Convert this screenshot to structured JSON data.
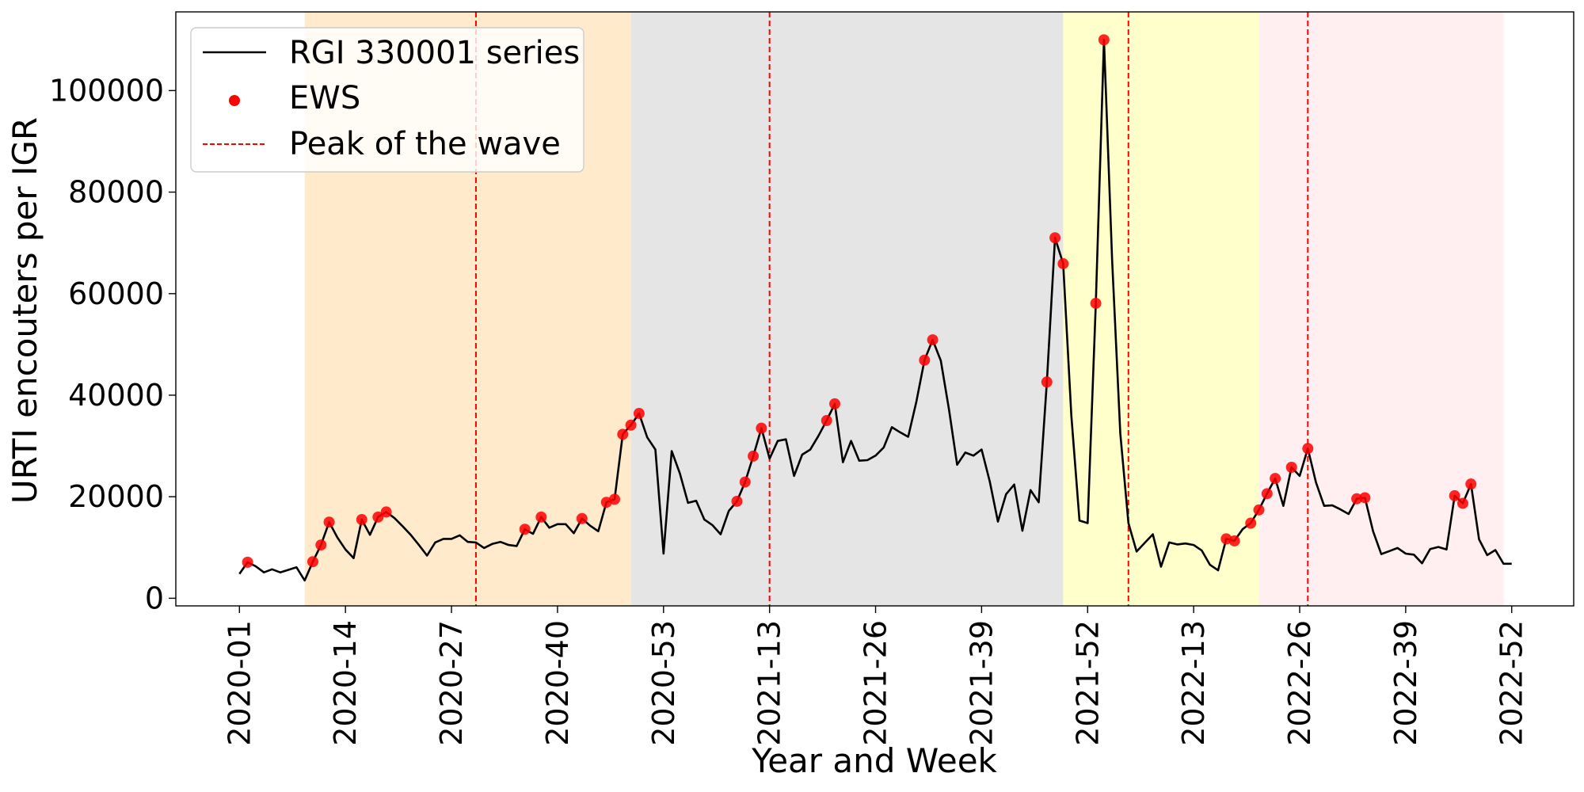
{
  "chart_data": {
    "type": "line",
    "xlabel": "Year and Week",
    "ylabel": "URTI encouters per IGR",
    "x_tick_labels": [
      "2020-01",
      "2020-14",
      "2020-27",
      "2020-40",
      "2020-53",
      "2021-13",
      "2021-26",
      "2021-39",
      "2021-52",
      "2022-13",
      "2022-26",
      "2022-39",
      "2022-52"
    ],
    "x_tick_index": [
      0,
      13,
      26,
      39,
      52,
      65,
      78,
      91,
      104,
      117,
      130,
      143,
      156
    ],
    "y_ticks": [
      0,
      20000,
      40000,
      60000,
      80000,
      100000
    ],
    "y_tick_labels": [
      "0",
      "20000",
      "40000",
      "60000",
      "80000",
      "100000"
    ],
    "ylim": [
      -1500,
      115500
    ],
    "xlim": [
      -7.8,
      163.6
    ],
    "legend": {
      "placement": "top-left",
      "entries": [
        {
          "key": "series",
          "label": "RGI 330001 series"
        },
        {
          "key": "ews",
          "label": "EWS"
        },
        {
          "key": "peak",
          "label": "Peak of the wave"
        }
      ]
    },
    "colors": {
      "series": "#000000",
      "ews": "#ff0000",
      "peak": "#ff0000",
      "wave1": "#ffebcc",
      "wave2": "#e5e5e5",
      "wave3": "#ffffcc",
      "wave4": "#ffeff1"
    },
    "wave_spans": [
      {
        "start": 8,
        "end": 48,
        "color_key": "wave1"
      },
      {
        "start": 48,
        "end": 101,
        "color_key": "wave2"
      },
      {
        "start": 101,
        "end": 125,
        "color_key": "wave3"
      },
      {
        "start": 125,
        "end": 155,
        "color_key": "wave4"
      }
    ],
    "peak_lines": [
      29,
      65,
      109,
      131
    ],
    "series": [
      {
        "key": "series",
        "values": [
          4800,
          7100,
          6300,
          5100,
          5700,
          5100,
          5600,
          6100,
          3500,
          7200,
          10500,
          15000,
          12000,
          9600,
          7900,
          15500,
          12500,
          16000,
          17000,
          15800,
          14200,
          12500,
          10500,
          8400,
          11000,
          11700,
          11700,
          12400,
          11100,
          11000,
          9900,
          10700,
          11100,
          10500,
          10300,
          13600,
          12700,
          16000,
          13900,
          14600,
          14600,
          12800,
          15700,
          14300,
          13200,
          18900,
          19500,
          32300,
          34100,
          36400,
          31700,
          29300,
          8800,
          29000,
          24600,
          18800,
          19200,
          15500,
          14400,
          12600,
          17200,
          19100,
          22900,
          28000,
          33500,
          27500,
          31000,
          31300,
          24100,
          28300,
          29300,
          32000,
          35000,
          38300,
          26800,
          31000,
          27100,
          27200,
          28100,
          29700,
          33700,
          32700,
          31800,
          38700,
          46900,
          50900,
          46800,
          37200,
          26300,
          28700,
          28100,
          29300,
          23000,
          15100,
          20500,
          22400,
          13300,
          21300,
          18900,
          42600,
          71000,
          65900,
          36000,
          15300,
          14800,
          58100,
          110000,
          66600,
          32500,
          14800,
          9200,
          10900,
          12600,
          6200,
          11000,
          10600,
          10800,
          10500,
          9400,
          6600,
          5500,
          11700,
          11300,
          13600,
          14800,
          17400,
          20600,
          23600,
          18200,
          25800,
          24100,
          29500,
          22800,
          18200,
          18300,
          17500,
          16600,
          19600,
          19800,
          13200,
          8700,
          9300,
          9900,
          8800,
          8600,
          6900,
          9700,
          10100,
          9600,
          20200,
          18700,
          22500,
          11600,
          8500,
          9500,
          6800,
          6800
        ]
      },
      {
        "key": "ews",
        "points": [
          {
            "i": 1,
            "y": 7100
          },
          {
            "i": 9,
            "y": 7200
          },
          {
            "i": 10,
            "y": 10500
          },
          {
            "i": 11,
            "y": 15000
          },
          {
            "i": 15,
            "y": 15500
          },
          {
            "i": 17,
            "y": 16000
          },
          {
            "i": 18,
            "y": 17000
          },
          {
            "i": 35,
            "y": 13600
          },
          {
            "i": 37,
            "y": 16000
          },
          {
            "i": 42,
            "y": 15700
          },
          {
            "i": 45,
            "y": 18900
          },
          {
            "i": 46,
            "y": 19500
          },
          {
            "i": 47,
            "y": 32300
          },
          {
            "i": 48,
            "y": 34100
          },
          {
            "i": 49,
            "y": 36400
          },
          {
            "i": 61,
            "y": 19100
          },
          {
            "i": 62,
            "y": 22900
          },
          {
            "i": 63,
            "y": 28000
          },
          {
            "i": 64,
            "y": 33500
          },
          {
            "i": 72,
            "y": 35000
          },
          {
            "i": 73,
            "y": 38300
          },
          {
            "i": 84,
            "y": 46900
          },
          {
            "i": 85,
            "y": 50900
          },
          {
            "i": 99,
            "y": 42600
          },
          {
            "i": 100,
            "y": 71000
          },
          {
            "i": 101,
            "y": 65900
          },
          {
            "i": 105,
            "y": 58100
          },
          {
            "i": 106,
            "y": 110000
          },
          {
            "i": 121,
            "y": 11700
          },
          {
            "i": 122,
            "y": 11300
          },
          {
            "i": 124,
            "y": 14800
          },
          {
            "i": 125,
            "y": 17400
          },
          {
            "i": 126,
            "y": 20600
          },
          {
            "i": 127,
            "y": 23600
          },
          {
            "i": 129,
            "y": 25800
          },
          {
            "i": 131,
            "y": 29500
          },
          {
            "i": 137,
            "y": 19600
          },
          {
            "i": 138,
            "y": 19800
          },
          {
            "i": 149,
            "y": 20200
          },
          {
            "i": 150,
            "y": 18700
          },
          {
            "i": 151,
            "y": 22500
          }
        ]
      }
    ]
  }
}
